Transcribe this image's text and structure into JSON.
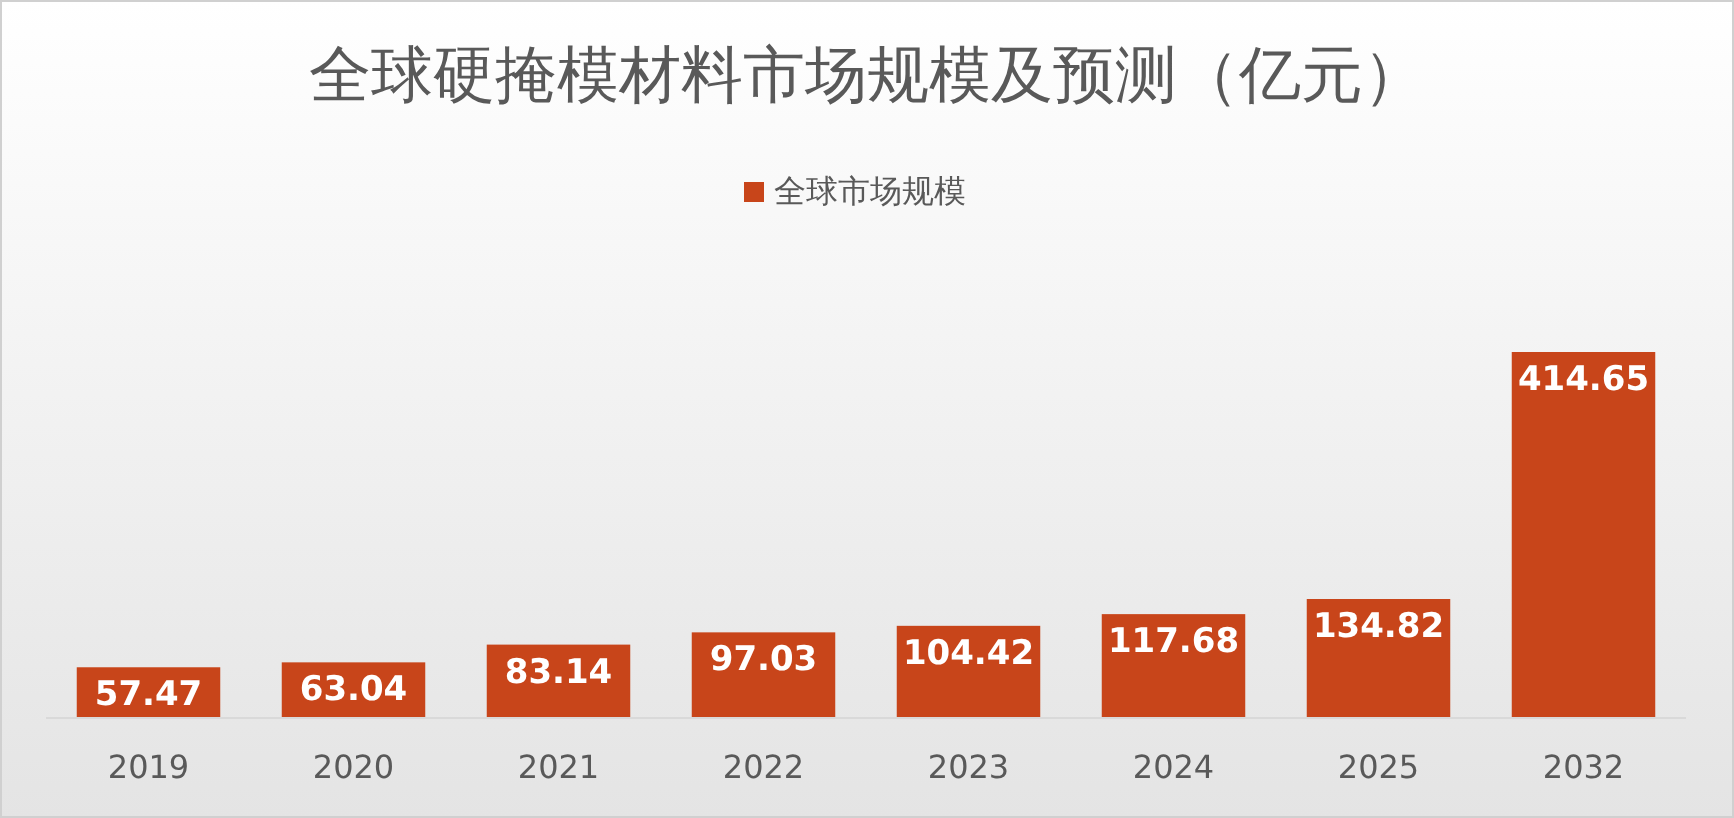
{
  "chart_data": {
    "type": "bar",
    "title": "全球硬掩模材料市场规模及预测（亿元）",
    "categories": [
      "2019",
      "2020",
      "2021",
      "2022",
      "2023",
      "2024",
      "2025",
      "2032"
    ],
    "series": [
      {
        "name": "全球市场规模",
        "color": "#c8451a",
        "values": [
          57.47,
          63.04,
          83.14,
          97.03,
          104.42,
          117.68,
          134.82,
          414.65
        ]
      }
    ],
    "data_labels": true,
    "legend": "top",
    "grid": false
  }
}
